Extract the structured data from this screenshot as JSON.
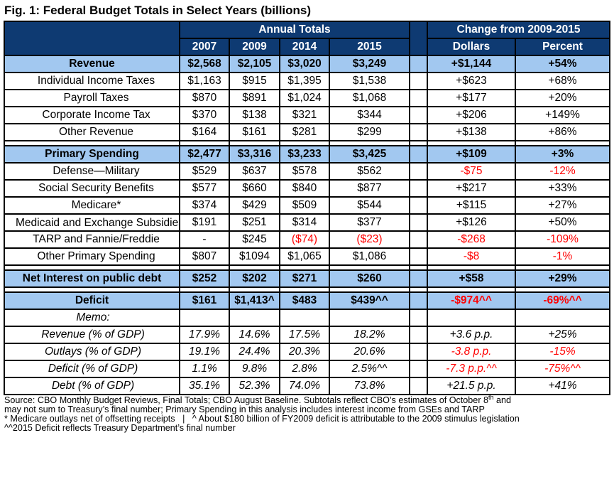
{
  "title": "Fig. 1: Federal Budget Totals in Select Years (billions)",
  "colors": {
    "navy": "#0e3a72",
    "light_blue": "#a2c8f0",
    "negative_red": "#ff0000"
  },
  "chart_data": {
    "type": "table",
    "title": "Fig. 1: Federal Budget Totals in Select Years (billions)",
    "column_groups": {
      "annual": "Annual Totals",
      "change": "Change from 2009-2015"
    },
    "columns": [
      "2007",
      "2009",
      "2014",
      "2015",
      "Dollars",
      "Percent"
    ],
    "rows": [
      {
        "label": "Revenue",
        "style": "section",
        "cells": [
          "$2,568",
          "$2,105",
          "$3,020",
          "$3,249",
          "+$1,144",
          "+54%"
        ],
        "red": []
      },
      {
        "label": "Individual Income Taxes",
        "style": "sub",
        "cells": [
          "$1,163",
          "$915",
          "$1,395",
          "$1,538",
          "+$623",
          "+68%"
        ],
        "red": []
      },
      {
        "label": "Payroll Taxes",
        "style": "sub",
        "cells": [
          "$870",
          "$891",
          "$1,024",
          "$1,068",
          "+$177",
          "+20%"
        ],
        "red": []
      },
      {
        "label": "Corporate Income Tax",
        "style": "sub",
        "cells": [
          "$370",
          "$138",
          "$321",
          "$344",
          "+$206",
          "+149%"
        ],
        "red": []
      },
      {
        "label": "Other Revenue",
        "style": "sub",
        "cells": [
          "$164",
          "$161",
          "$281",
          "$299",
          "+$138",
          "+86%"
        ],
        "red": []
      },
      {
        "style": "gap"
      },
      {
        "label": "Primary Spending",
        "style": "section",
        "cells": [
          "$2,477",
          "$3,316",
          "$3,233",
          "$3,425",
          "+$109",
          "+3%"
        ],
        "red": []
      },
      {
        "label": "Defense—Military",
        "style": "sub",
        "cells": [
          "$529",
          "$637",
          "$578",
          "$562",
          "-$75",
          "-12%"
        ],
        "red": [
          4,
          5
        ]
      },
      {
        "label": "Social Security Benefits",
        "style": "sub",
        "cells": [
          "$577",
          "$660",
          "$840",
          "$877",
          "+$217",
          "+33%"
        ],
        "red": []
      },
      {
        "label": "Medicare*",
        "style": "sub",
        "cells": [
          "$374",
          "$429",
          "$509",
          "$544",
          "+$115",
          "+27%"
        ],
        "red": []
      },
      {
        "label": "Medicaid and Exchange Subsidies",
        "style": "sub",
        "wrap": true,
        "low": [
          5
        ],
        "cells": [
          "$191",
          "$251",
          "$314",
          "$377",
          "+$126",
          "+50%"
        ],
        "red": []
      },
      {
        "label": "TARP and Fannie/Freddie",
        "style": "sub",
        "cells": [
          "-",
          "$245",
          "($74)",
          "($23)",
          "-$268",
          "-109%"
        ],
        "red": [
          2,
          3,
          4,
          5
        ]
      },
      {
        "label": "Other Primary Spending",
        "style": "sub",
        "cells": [
          "$807",
          "$1094",
          "$1,065",
          "$1,086",
          "-$8",
          "-1%"
        ],
        "red": [
          4,
          5
        ]
      },
      {
        "style": "gap"
      },
      {
        "label": "Net Interest on public debt",
        "style": "section",
        "cells": [
          "$252",
          "$202",
          "$271",
          "$260",
          "+$58",
          "+29%"
        ],
        "red": []
      },
      {
        "style": "gap"
      },
      {
        "label": "Deficit",
        "style": "section",
        "cells": [
          "$161",
          "$1,413^",
          "$483",
          "$439^^",
          "-$974^^",
          "-69%^^"
        ],
        "red": [
          4,
          5
        ]
      },
      {
        "label": "Memo:",
        "style": "memo",
        "cells": [
          "",
          "",
          "",
          "",
          "",
          ""
        ],
        "red": []
      },
      {
        "label": "Revenue (% of GDP)",
        "style": "memo",
        "cells": [
          "17.9%",
          "14.6%",
          "17.5%",
          "18.2%",
          "+3.6 p.p.",
          "+25%"
        ],
        "red": []
      },
      {
        "label": "Outlays (% of GDP)",
        "style": "memo",
        "cells": [
          "19.1%",
          "24.4%",
          "20.3%",
          "20.6%",
          "-3.8 p.p.",
          "-15%"
        ],
        "red": [
          4,
          5
        ]
      },
      {
        "label": "Deficit (% of GDP)",
        "style": "memo",
        "cells": [
          "1.1%",
          "9.8%",
          "2.8%",
          "2.5%^^",
          "-7.3 p.p.^^",
          "-75%^^"
        ],
        "red": [
          4,
          5
        ]
      },
      {
        "label": "Debt (% of GDP)",
        "style": "memo",
        "cells": [
          "35.1%",
          "52.3%",
          "74.0%",
          "73.8%",
          "+21.5 p.p.",
          "+41%"
        ],
        "red": []
      }
    ]
  },
  "footnotes": {
    "line1_pre": "Source: CBO Monthly Budget Reviews, Final Totals; CBO August Baseline. Subtotals reflect CBO’s estimates of October 8",
    "line1_sup": "th",
    "line1_post": " and",
    "line2": "may not sum to Treasury’s final number; Primary Spending in this analysis includes interest income from GSEs and TARP",
    "line3": "* Medicare outlays net of offsetting receipts   |   ^ About $180 billion of FY2009 deficit is attributable to the 2009 stimulus legislation",
    "line4": "^^2015 Deficit reflects Treasury Department’s final number"
  }
}
